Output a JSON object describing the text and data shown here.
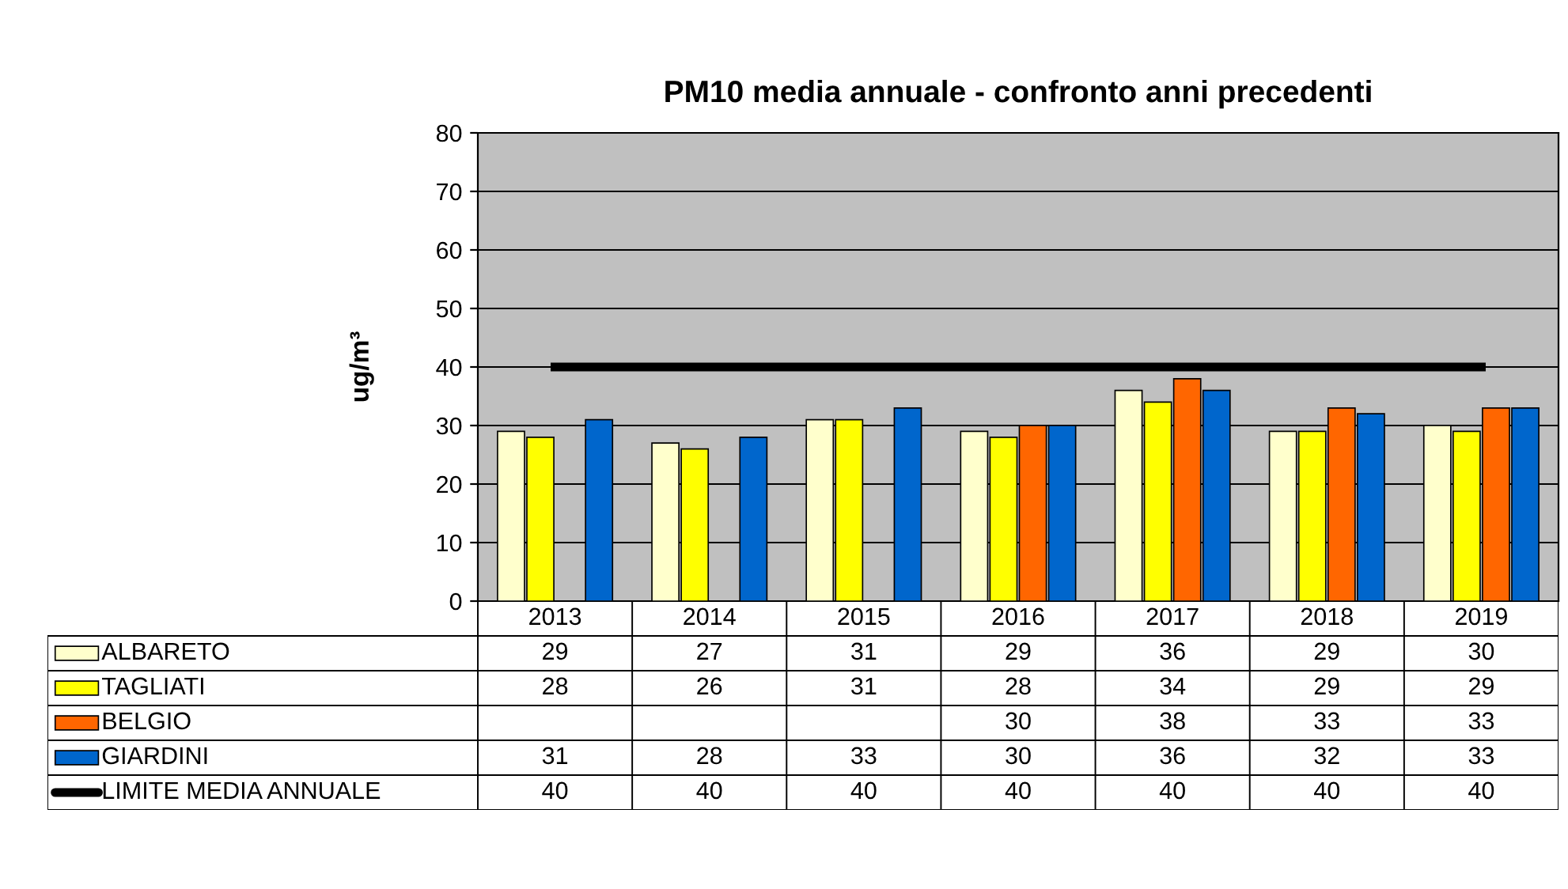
{
  "chart_data": {
    "type": "bar",
    "title": "PM10 media annuale - confronto anni precedenti",
    "ylabel": "ug/m³",
    "categories": [
      "2013",
      "2014",
      "2015",
      "2016",
      "2017",
      "2018",
      "2019"
    ],
    "series": [
      {
        "name": "ALBARETO",
        "color": "#ffffcc",
        "values": [
          29,
          27,
          31,
          29,
          36,
          29,
          30
        ]
      },
      {
        "name": "TAGLIATI",
        "color": "#ffff00",
        "values": [
          28,
          26,
          31,
          28,
          34,
          29,
          29
        ]
      },
      {
        "name": "BELGIO",
        "color": "#ff6600",
        "values": [
          null,
          null,
          null,
          30,
          38,
          33,
          33
        ]
      },
      {
        "name": "GIARDINI",
        "color": "#0066cc",
        "values": [
          31,
          28,
          33,
          30,
          36,
          32,
          33
        ]
      },
      {
        "name": "LIMITE MEDIA ANNUALE",
        "type": "line",
        "color": "#000000",
        "values": [
          40,
          40,
          40,
          40,
          40,
          40,
          40
        ]
      }
    ],
    "ylim": [
      0,
      80
    ],
    "yticks": [
      0,
      10,
      20,
      30,
      40,
      50,
      60,
      70,
      80
    ],
    "grid": "y",
    "legend": "bottom left",
    "data_labels": true,
    "marker": "none",
    "line_style": "solid"
  }
}
